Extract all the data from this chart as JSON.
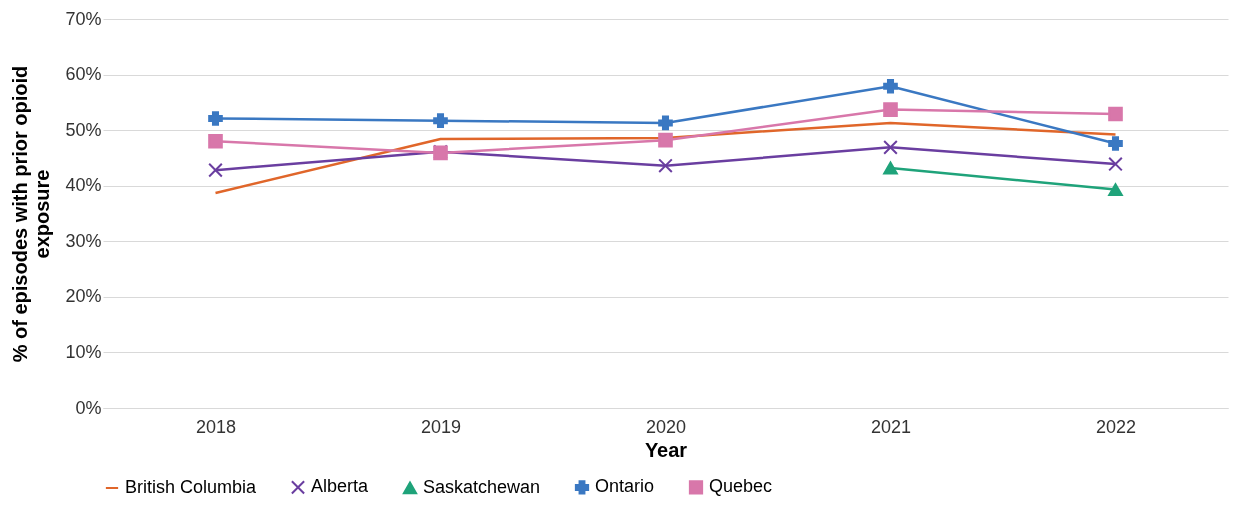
{
  "chart_data": {
    "type": "line",
    "xlabel": "Year",
    "ylabel": "% of episodes with prior opioid exposure",
    "categories": [
      "2018",
      "2019",
      "2020",
      "2021",
      "2022"
    ],
    "series": [
      {
        "name": "British Columbia",
        "color": "#e0662a",
        "marker": "none",
        "values": [
          38.7,
          48.4,
          48.6,
          51.3,
          49.2
        ]
      },
      {
        "name": "Alberta",
        "color": "#6a3ea0",
        "marker": "x",
        "values": [
          42.8,
          46.1,
          43.6,
          46.9,
          43.9
        ]
      },
      {
        "name": "Saskatchewan",
        "color": "#1fa37a",
        "marker": "triangle",
        "values": [
          null,
          null,
          null,
          43.2,
          39.3
        ]
      },
      {
        "name": "Ontario",
        "color": "#3a78c2",
        "marker": "cross",
        "values": [
          52.1,
          51.7,
          51.3,
          57.9,
          47.6
        ]
      },
      {
        "name": "Quebec",
        "color": "#d877aa",
        "marker": "square",
        "values": [
          48.0,
          45.9,
          48.2,
          53.7,
          52.9
        ]
      }
    ],
    "ylim": [
      0,
      70
    ],
    "yticks": [
      {
        "value": 0,
        "label": "0%"
      },
      {
        "value": 10,
        "label": "10%"
      },
      {
        "value": 20,
        "label": "20%"
      },
      {
        "value": 30,
        "label": "30%"
      },
      {
        "value": 40,
        "label": "40%"
      },
      {
        "value": 50,
        "label": "50%"
      },
      {
        "value": 60,
        "label": "60%"
      },
      {
        "value": 70,
        "label": "70%"
      }
    ],
    "grid": "y",
    "legend": "bottom",
    "line_style": "solid"
  }
}
